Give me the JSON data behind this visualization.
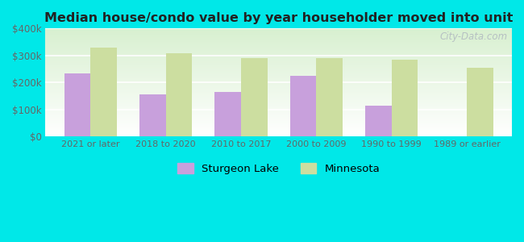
{
  "title": "Median house/condo value by year householder moved into unit",
  "categories": [
    "2021 or later",
    "2018 to 2020",
    "2010 to 2017",
    "2000 to 2009",
    "1990 to 1999",
    "1989 or earlier"
  ],
  "sturgeon_lake": [
    235000,
    155000,
    165000,
    225000,
    115000,
    0
  ],
  "minnesota": [
    328000,
    308000,
    290000,
    290000,
    283000,
    255000
  ],
  "sturgeon_color": "#c8a0dc",
  "minnesota_color": "#ccdea0",
  "background_color": "#00e8e8",
  "title_color": "#222222",
  "ylim": [
    0,
    400000
  ],
  "yticks": [
    0,
    100000,
    200000,
    300000,
    400000
  ],
  "ytick_labels": [
    "$0",
    "$100k",
    "$200k",
    "$300k",
    "$400k"
  ],
  "bar_width": 0.35,
  "legend_sturgeon": "Sturgeon Lake",
  "legend_minnesota": "Minnesota",
  "watermark": "City-Data.com",
  "grid_color": "#ffffff",
  "tick_color": "#666666"
}
